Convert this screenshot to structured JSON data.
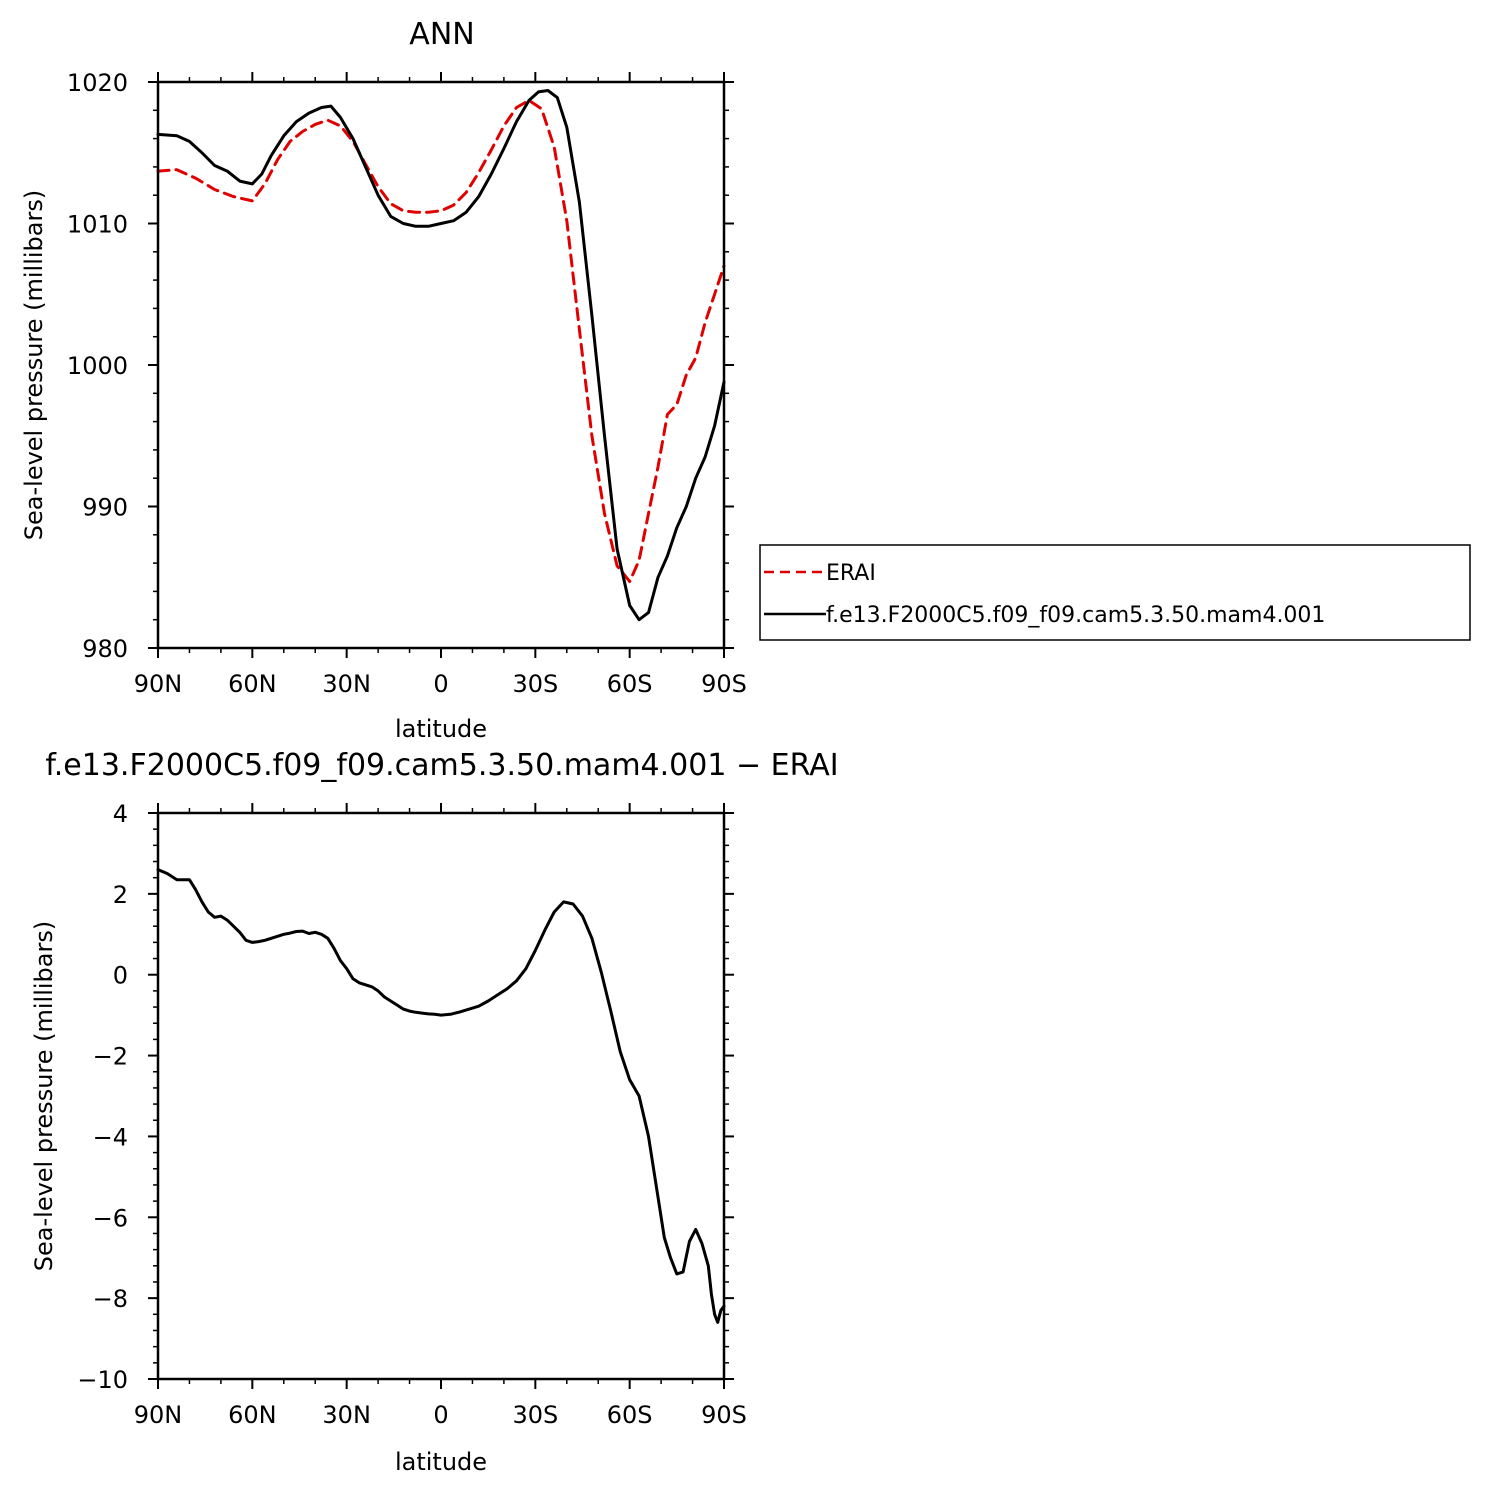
{
  "chart_data": [
    {
      "type": "line",
      "title": "ANN",
      "xlabel": "latitude",
      "ylabel": "Sea-level pressure (millibars)",
      "xlim": [
        90,
        -90
      ],
      "ylim": [
        980,
        1020
      ],
      "xticks": [
        90,
        60,
        30,
        0,
        -30,
        -60,
        -90
      ],
      "xtick_labels": [
        "90N",
        "60N",
        "30N",
        "0",
        "30S",
        "60S",
        "90S"
      ],
      "yticks": [
        980,
        990,
        1000,
        1010,
        1020
      ],
      "ytick_labels": [
        "980",
        "990",
        "1000",
        "1010",
        "1020"
      ],
      "legend_placement": "right",
      "series": [
        {
          "name": "ERAI",
          "color": "#e00000",
          "dash": "dashed",
          "x": [
            90,
            84,
            78,
            72,
            66,
            60,
            56,
            52,
            48,
            44,
            40,
            36,
            32,
            28,
            24,
            20,
            16,
            12,
            8,
            4,
            0,
            -4,
            -8,
            -12,
            -16,
            -20,
            -24,
            -28,
            -32,
            -36,
            -40,
            -44,
            -48,
            -52,
            -56,
            -60,
            -63,
            -66,
            -69,
            -72,
            -75,
            -78,
            -81,
            -84,
            -87,
            -90
          ],
          "y": [
            1013.7,
            1013.8,
            1013.2,
            1012.4,
            1011.9,
            1011.6,
            1012.8,
            1014.5,
            1015.8,
            1016.5,
            1017.0,
            1017.3,
            1016.9,
            1015.8,
            1014.2,
            1012.6,
            1011.4,
            1010.9,
            1010.8,
            1010.8,
            1010.9,
            1011.3,
            1012.2,
            1013.6,
            1015.2,
            1016.9,
            1018.2,
            1018.7,
            1018.1,
            1015.4,
            1010.2,
            1002.5,
            995.0,
            989.5,
            985.8,
            984.7,
            986.2,
            989.5,
            992.8,
            996.5,
            997.2,
            999.3,
            1000.5,
            1003.0,
            1005.0,
            1007.0
          ]
        },
        {
          "name": "f.e13.F2000C5.f09_f09.cam5.3.50.mam4.001",
          "color": "#000000",
          "dash": "solid",
          "x": [
            90,
            84,
            80,
            76,
            72,
            68,
            64,
            60,
            57,
            54,
            50,
            46,
            42,
            38,
            35,
            32,
            28,
            24,
            20,
            16,
            12,
            8,
            4,
            0,
            -4,
            -8,
            -12,
            -16,
            -20,
            -24,
            -28,
            -31,
            -34,
            -37,
            -40,
            -44,
            -48,
            -52,
            -56,
            -60,
            -63,
            -66,
            -69,
            -72,
            -75,
            -78,
            -81,
            -84,
            -87,
            -90
          ],
          "y": [
            1016.3,
            1016.2,
            1015.8,
            1015.0,
            1014.1,
            1013.7,
            1013.0,
            1012.8,
            1013.5,
            1014.8,
            1016.2,
            1017.2,
            1017.8,
            1018.2,
            1018.3,
            1017.5,
            1016.0,
            1014.0,
            1012.0,
            1010.5,
            1010.0,
            1009.8,
            1009.8,
            1010.0,
            1010.2,
            1010.8,
            1011.9,
            1013.5,
            1015.3,
            1017.2,
            1018.7,
            1019.3,
            1019.4,
            1018.9,
            1016.8,
            1011.5,
            1003.5,
            995.0,
            987.0,
            983.0,
            982.0,
            982.5,
            985.0,
            986.5,
            988.5,
            990.0,
            992.0,
            993.5,
            995.7,
            998.8
          ]
        }
      ]
    },
    {
      "type": "line",
      "title": "f.e13.F2000C5.f09_f09.cam5.3.50.mam4.001 − ERAI",
      "xlabel": "latitude",
      "ylabel": "Sea-level pressure (millibars)",
      "xlim": [
        90,
        -90
      ],
      "ylim": [
        -10,
        4
      ],
      "xticks": [
        90,
        60,
        30,
        0,
        -30,
        -60,
        -90
      ],
      "xtick_labels": [
        "90N",
        "60N",
        "30N",
        "0",
        "30S",
        "60S",
        "90S"
      ],
      "yticks": [
        -10,
        -8,
        -6,
        -4,
        -2,
        0,
        2,
        4
      ],
      "ytick_labels": [
        "−10",
        "−8",
        "−6",
        "−4",
        "−2",
        "0",
        "2",
        "4"
      ],
      "series": [
        {
          "color": "#000000",
          "dash": "solid",
          "x": [
            90,
            87,
            84,
            82,
            80,
            78,
            76,
            74,
            72,
            70,
            68,
            66,
            64,
            62,
            60,
            58,
            56,
            54,
            52,
            50,
            48,
            46,
            44,
            42,
            40,
            38,
            36,
            34,
            32,
            30,
            28,
            26,
            24,
            22,
            20,
            18,
            16,
            14,
            12,
            10,
            8,
            6,
            4,
            2,
            0,
            -3,
            -6,
            -9,
            -12,
            -15,
            -18,
            -21,
            -24,
            -27,
            -30,
            -33,
            -36,
            -39,
            -42,
            -45,
            -48,
            -51,
            -54,
            -57,
            -60,
            -63,
            -66,
            -69,
            -71,
            -73,
            -75,
            -77,
            -79,
            -81,
            -83,
            -85,
            -86,
            -87,
            -88,
            -89,
            -90
          ],
          "y": [
            2.6,
            2.5,
            2.35,
            2.35,
            2.35,
            2.1,
            1.8,
            1.55,
            1.42,
            1.45,
            1.35,
            1.2,
            1.05,
            0.85,
            0.8,
            0.82,
            0.85,
            0.9,
            0.95,
            1.0,
            1.03,
            1.07,
            1.08,
            1.02,
            1.05,
            1.0,
            0.9,
            0.65,
            0.35,
            0.15,
            -0.1,
            -0.2,
            -0.25,
            -0.3,
            -0.4,
            -0.55,
            -0.65,
            -0.75,
            -0.85,
            -0.9,
            -0.93,
            -0.95,
            -0.97,
            -0.98,
            -1.0,
            -0.98,
            -0.92,
            -0.85,
            -0.78,
            -0.65,
            -0.5,
            -0.35,
            -0.15,
            0.15,
            0.6,
            1.1,
            1.55,
            1.8,
            1.75,
            1.45,
            0.9,
            0.05,
            -0.9,
            -1.9,
            -2.6,
            -3.0,
            -4.0,
            -5.5,
            -6.5,
            -7.0,
            -7.4,
            -7.35,
            -6.6,
            -6.3,
            -6.65,
            -7.2,
            -7.9,
            -8.4,
            -8.6,
            -8.3,
            -8.2
          ]
        }
      ]
    }
  ]
}
